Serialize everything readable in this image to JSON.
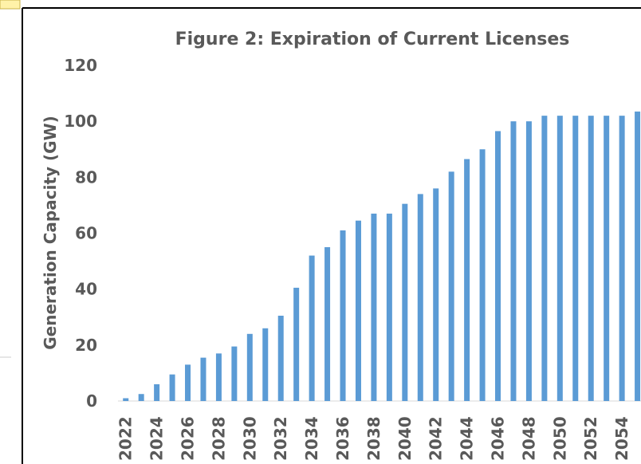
{
  "chart_data": {
    "type": "bar",
    "title": "Figure 2: Expiration of Current Licenses",
    "y_label": "Generation Capacity (GW)",
    "categories": [
      "2022",
      null,
      "2024",
      null,
      "2026",
      null,
      "2028",
      null,
      "2030",
      null,
      "2032",
      null,
      "2034",
      null,
      "2036",
      null,
      "2038",
      null,
      "2040",
      null,
      "2042",
      null,
      "2044",
      null,
      "2046",
      null,
      "2048",
      null,
      "2050",
      null,
      "2052",
      null,
      "2054",
      null
    ],
    "values": [
      1,
      2.5,
      6,
      9.5,
      13,
      15.5,
      17,
      19.5,
      24,
      26,
      30.5,
      40.5,
      52,
      55,
      61,
      64.5,
      67,
      67,
      70.5,
      74,
      76,
      82,
      86.5,
      90,
      96.5,
      100,
      100,
      102,
      102,
      102,
      102,
      102,
      102,
      103.5
    ],
    "color": "#5b9bd5",
    "ylim": [
      0,
      120
    ],
    "yticks": [
      0,
      20,
      40,
      60,
      80,
      100,
      120
    ],
    "grid": false
  }
}
